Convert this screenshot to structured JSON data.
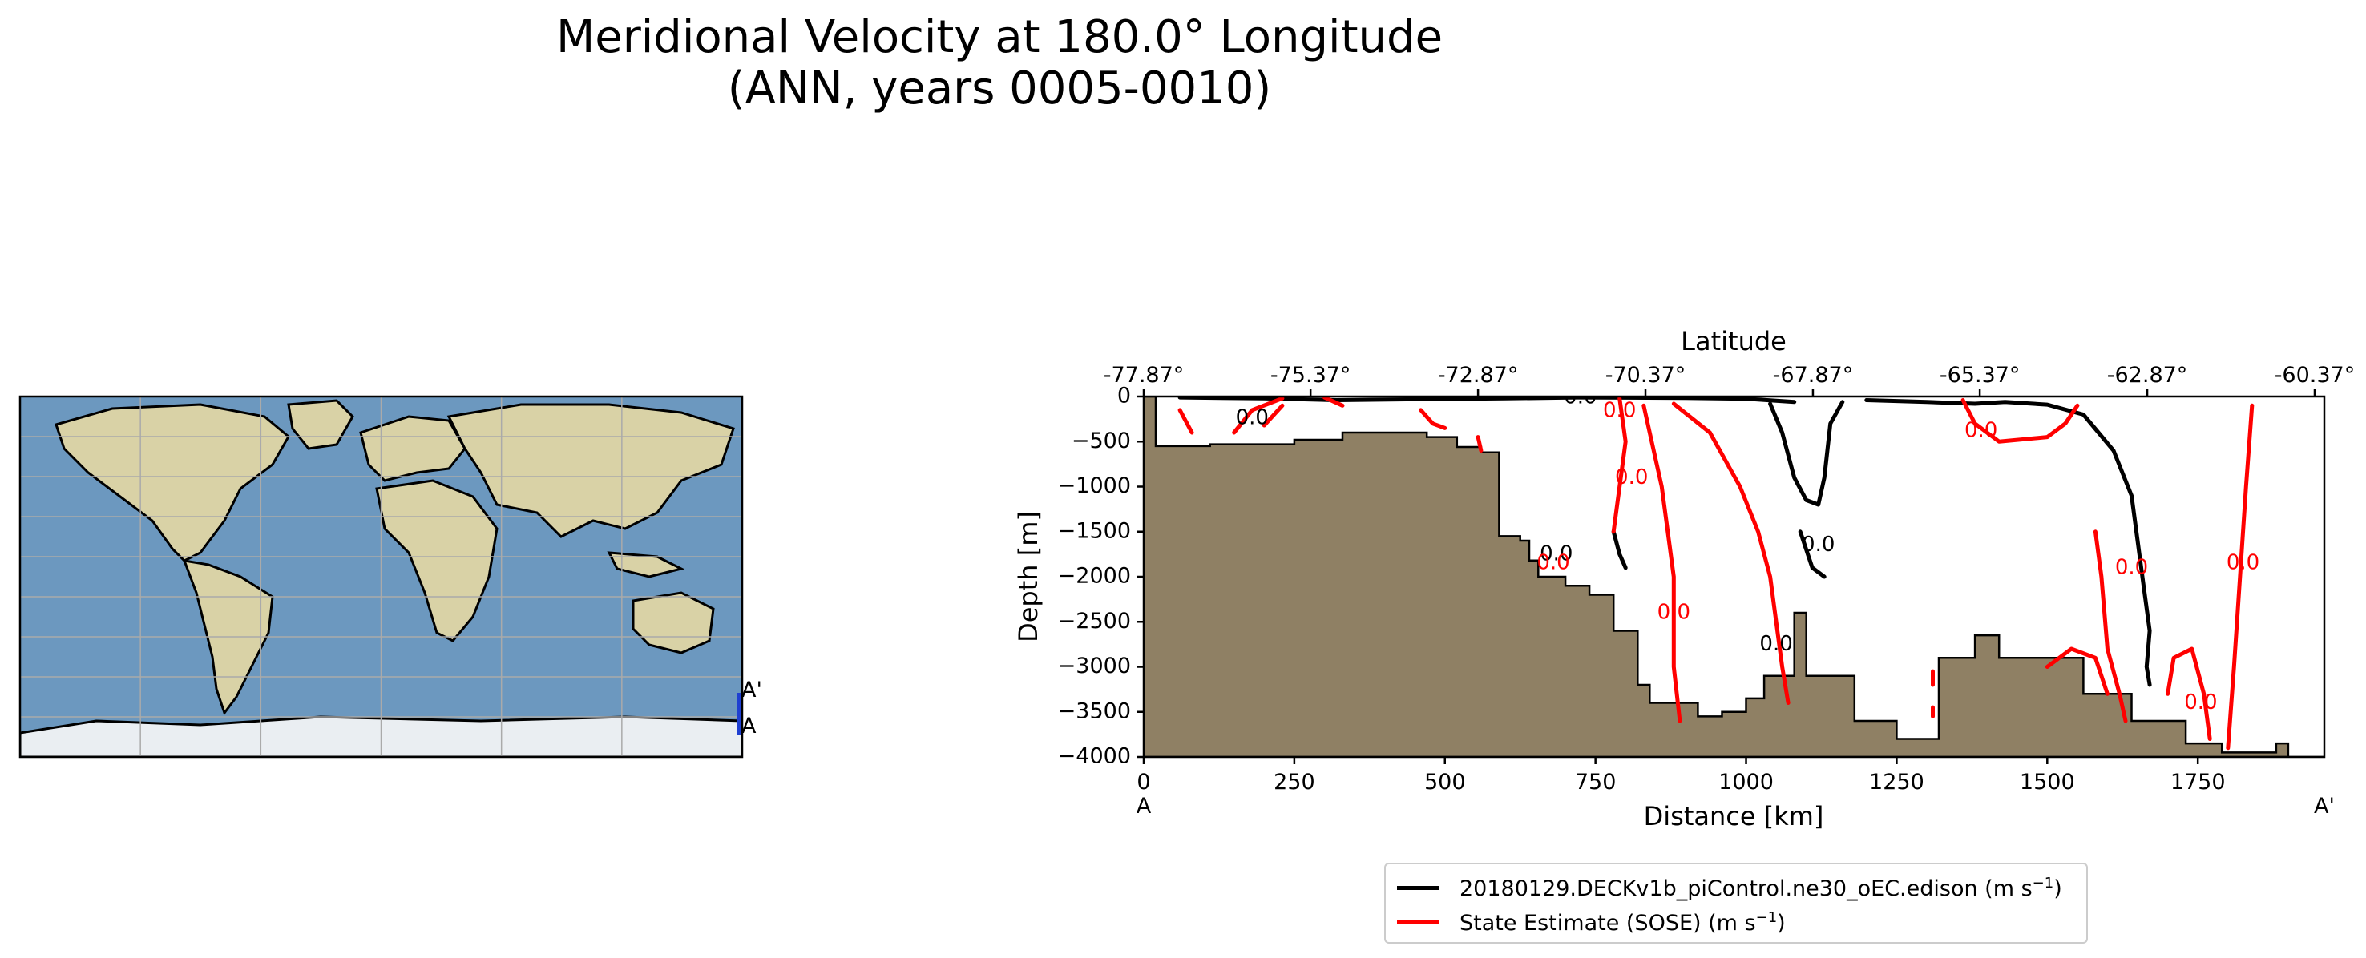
{
  "chart_data": [
    {
      "type": "map",
      "endpoint_labels": [
        "A'",
        "A"
      ],
      "colors": {
        "land_tan": "#d9d2a6",
        "ocean_blue": "#6c98bf",
        "ice": "#eaeef2",
        "section_line": "#1f3fd1",
        "gridline": "#aaaaaa"
      }
    },
    {
      "type": "contour",
      "title_line1": "Meridional Velocity at 180.0° Longitude",
      "title_line2": "(ANN, years 0005-0010)",
      "xlabel": "Distance [km]",
      "ylabel": "Depth [m]",
      "top_axis_label": "Latitude",
      "xlim": [
        0,
        1960
      ],
      "ylim": [
        -4000,
        0
      ],
      "x_ticks": [
        0,
        250,
        500,
        750,
        1000,
        1250,
        1500,
        1750
      ],
      "y_ticks": [
        0,
        -500,
        -1000,
        -1500,
        -2000,
        -2500,
        -3000,
        -3500,
        -4000
      ],
      "y_tick_labels": [
        "0",
        "−500",
        "−1000",
        "−1500",
        "−2000",
        "−2500",
        "−3000",
        "−3500",
        "−4000"
      ],
      "top_ticks_km": [
        0,
        277,
        555,
        833,
        1111,
        1388,
        1666,
        1944
      ],
      "top_tick_labels": [
        "-77.87°",
        "-75.37°",
        "-72.87°",
        "-70.37°",
        "-67.87°",
        "-65.37°",
        "-62.87°",
        "-60.37°"
      ],
      "bottom_endpoints": [
        "A",
        "A'"
      ],
      "contour_label": "0.0",
      "bathymetry": {
        "color": "#8f8064",
        "profile": [
          [
            0,
            0
          ],
          [
            20,
            0
          ],
          [
            20,
            -550
          ],
          [
            110,
            -550
          ],
          [
            110,
            -530
          ],
          [
            250,
            -530
          ],
          [
            250,
            -480
          ],
          [
            330,
            -480
          ],
          [
            330,
            -400
          ],
          [
            470,
            -400
          ],
          [
            470,
            -450
          ],
          [
            520,
            -450
          ],
          [
            520,
            -560
          ],
          [
            560,
            -560
          ],
          [
            560,
            -620
          ],
          [
            590,
            -620
          ],
          [
            590,
            -1550
          ],
          [
            625,
            -1550
          ],
          [
            625,
            -1600
          ],
          [
            640,
            -1600
          ],
          [
            640,
            -1820
          ],
          [
            655,
            -1820
          ],
          [
            655,
            -2000
          ],
          [
            700,
            -2000
          ],
          [
            700,
            -2100
          ],
          [
            740,
            -2100
          ],
          [
            740,
            -2200
          ],
          [
            780,
            -2200
          ],
          [
            780,
            -2600
          ],
          [
            820,
            -2600
          ],
          [
            820,
            -3200
          ],
          [
            840,
            -3200
          ],
          [
            840,
            -3400
          ],
          [
            920,
            -3400
          ],
          [
            920,
            -3550
          ],
          [
            960,
            -3550
          ],
          [
            960,
            -3500
          ],
          [
            1000,
            -3500
          ],
          [
            1000,
            -3350
          ],
          [
            1030,
            -3350
          ],
          [
            1030,
            -3100
          ],
          [
            1080,
            -3100
          ],
          [
            1080,
            -2400
          ],
          [
            1100,
            -2400
          ],
          [
            1100,
            -3100
          ],
          [
            1180,
            -3100
          ],
          [
            1180,
            -3600
          ],
          [
            1250,
            -3600
          ],
          [
            1250,
            -3800
          ],
          [
            1320,
            -3800
          ],
          [
            1320,
            -2900
          ],
          [
            1380,
            -2900
          ],
          [
            1380,
            -2650
          ],
          [
            1420,
            -2650
          ],
          [
            1420,
            -2900
          ],
          [
            1560,
            -2900
          ],
          [
            1560,
            -3300
          ],
          [
            1640,
            -3300
          ],
          [
            1640,
            -3600
          ],
          [
            1730,
            -3600
          ],
          [
            1730,
            -3850
          ],
          [
            1790,
            -3850
          ],
          [
            1790,
            -3950
          ],
          [
            1880,
            -3950
          ],
          [
            1880,
            -3850
          ],
          [
            1900,
            -3850
          ],
          [
            1900,
            -4000
          ],
          [
            1960,
            -4000
          ],
          [
            1960,
            -4000
          ],
          [
            0,
            -4000
          ]
        ]
      },
      "series": [
        {
          "name": "20180129.DECKv1b_piControl.ne30_oEC.edison (m s",
          "unit_exponent": "−1",
          "name_suffix": ")",
          "color": "#000000",
          "contours": [
            [
              [
                60,
                -10
              ],
              [
                200,
                -20
              ],
              [
                320,
                -40
              ],
              [
                450,
                -30
              ],
              [
                600,
                -20
              ],
              [
                720,
                -10
              ],
              [
                900,
                -15
              ],
              [
                1000,
                -25
              ],
              [
                1080,
                -60
              ]
            ],
            [
              [
                1040,
                -80
              ],
              [
                1060,
                -400
              ],
              [
                1080,
                -900
              ],
              [
                1100,
                -1150
              ],
              [
                1120,
                -1200
              ],
              [
                1130,
                -900
              ],
              [
                1140,
                -300
              ],
              [
                1160,
                -60
              ]
            ],
            [
              [
                1200,
                -40
              ],
              [
                1300,
                -60
              ],
              [
                1380,
                -80
              ],
              [
                1430,
                -60
              ],
              [
                1500,
                -90
              ],
              [
                1560,
                -200
              ],
              [
                1610,
                -600
              ],
              [
                1640,
                -1100
              ],
              [
                1650,
                -1600
              ],
              [
                1660,
                -2100
              ],
              [
                1670,
                -2600
              ],
              [
                1665,
                -3000
              ],
              [
                1670,
                -3200
              ]
            ],
            [
              [
                1090,
                -1500
              ],
              [
                1100,
                -1700
              ],
              [
                1110,
                -1900
              ],
              [
                1130,
                -2000
              ]
            ],
            [
              [
                780,
                -1500
              ],
              [
                790,
                -1750
              ],
              [
                800,
                -1900
              ]
            ]
          ]
        },
        {
          "name": "State Estimate (SOSE) (m s",
          "unit_exponent": "−1",
          "name_suffix": ")",
          "color": "#ff0000",
          "contours": [
            [
              [
                60,
                -150
              ],
              [
                80,
                -400
              ]
            ],
            [
              [
                150,
                -400
              ],
              [
                180,
                -150
              ],
              [
                230,
                -20
              ]
            ],
            [
              [
                200,
                -320
              ],
              [
                230,
                -100
              ]
            ],
            [
              [
                300,
                -10
              ],
              [
                330,
                -100
              ]
            ],
            [
              [
                460,
                -150
              ],
              [
                480,
                -300
              ],
              [
                500,
                -350
              ]
            ],
            [
              [
                555,
                -450
              ],
              [
                560,
                -600
              ]
            ],
            [
              [
                790,
                -20
              ],
              [
                800,
                -500
              ],
              [
                790,
                -1000
              ],
              [
                780,
                -1500
              ]
            ],
            [
              [
                830,
                -100
              ],
              [
                860,
                -1000
              ],
              [
                880,
                -2000
              ],
              [
                880,
                -3000
              ],
              [
                890,
                -3600
              ]
            ],
            [
              [
                880,
                -80
              ],
              [
                940,
                -400
              ],
              [
                990,
                -1000
              ],
              [
                1020,
                -1500
              ],
              [
                1040,
                -2000
              ],
              [
                1050,
                -2500
              ],
              [
                1060,
                -3000
              ],
              [
                1070,
                -3400
              ]
            ],
            [
              [
                1360,
                -40
              ],
              [
                1380,
                -300
              ],
              [
                1420,
                -500
              ],
              [
                1500,
                -450
              ],
              [
                1530,
                -300
              ],
              [
                1550,
                -100
              ]
            ],
            [
              [
                1500,
                -3000
              ],
              [
                1540,
                -2800
              ],
              [
                1580,
                -2900
              ],
              [
                1600,
                -3300
              ]
            ],
            [
              [
                1580,
                -1500
              ],
              [
                1590,
                -2000
              ],
              [
                1600,
                -2800
              ],
              [
                1620,
                -3300
              ],
              [
                1630,
                -3600
              ]
            ],
            [
              [
                1700,
                -3300
              ],
              [
                1710,
                -2900
              ],
              [
                1740,
                -2800
              ],
              [
                1760,
                -3300
              ],
              [
                1770,
                -3800
              ]
            ],
            [
              [
                1840,
                -100
              ],
              [
                1830,
                -1000
              ],
              [
                1820,
                -2000
              ],
              [
                1810,
                -3000
              ],
              [
                1800,
                -3900
              ]
            ],
            [
              [
                1310,
                -3050
              ],
              [
                1310,
                -3200
              ]
            ],
            [
              [
                1310,
                -3450
              ],
              [
                1310,
                -3550
              ]
            ]
          ]
        }
      ],
      "inline_labels": [
        {
          "text": "0.0",
          "x": 180,
          "y": -240,
          "series": 0
        },
        {
          "text": "0.0",
          "x": 725,
          "y": -10,
          "series": 0
        },
        {
          "text": "0.0",
          "x": 685,
          "y": -1750,
          "series": 0
        },
        {
          "text": "0.0",
          "x": 1120,
          "y": -1650,
          "series": 0
        },
        {
          "text": "0.0",
          "x": 1050,
          "y": -2750,
          "series": 0
        },
        {
          "text": "0.0",
          "x": 790,
          "y": -160,
          "series": 1
        },
        {
          "text": "0.0",
          "x": 810,
          "y": -900,
          "series": 1
        },
        {
          "text": "0.0",
          "x": 880,
          "y": -2400,
          "series": 1
        },
        {
          "text": "0.0",
          "x": 680,
          "y": -1850,
          "series": 1
        },
        {
          "text": "0.0",
          "x": 1390,
          "y": -380,
          "series": 1
        },
        {
          "text": "0.0",
          "x": 1640,
          "y": -1900,
          "series": 1
        },
        {
          "text": "0.0",
          "x": 1755,
          "y": -3400,
          "series": 1
        },
        {
          "text": "0.0",
          "x": 1825,
          "y": -1850,
          "series": 1
        }
      ]
    }
  ]
}
